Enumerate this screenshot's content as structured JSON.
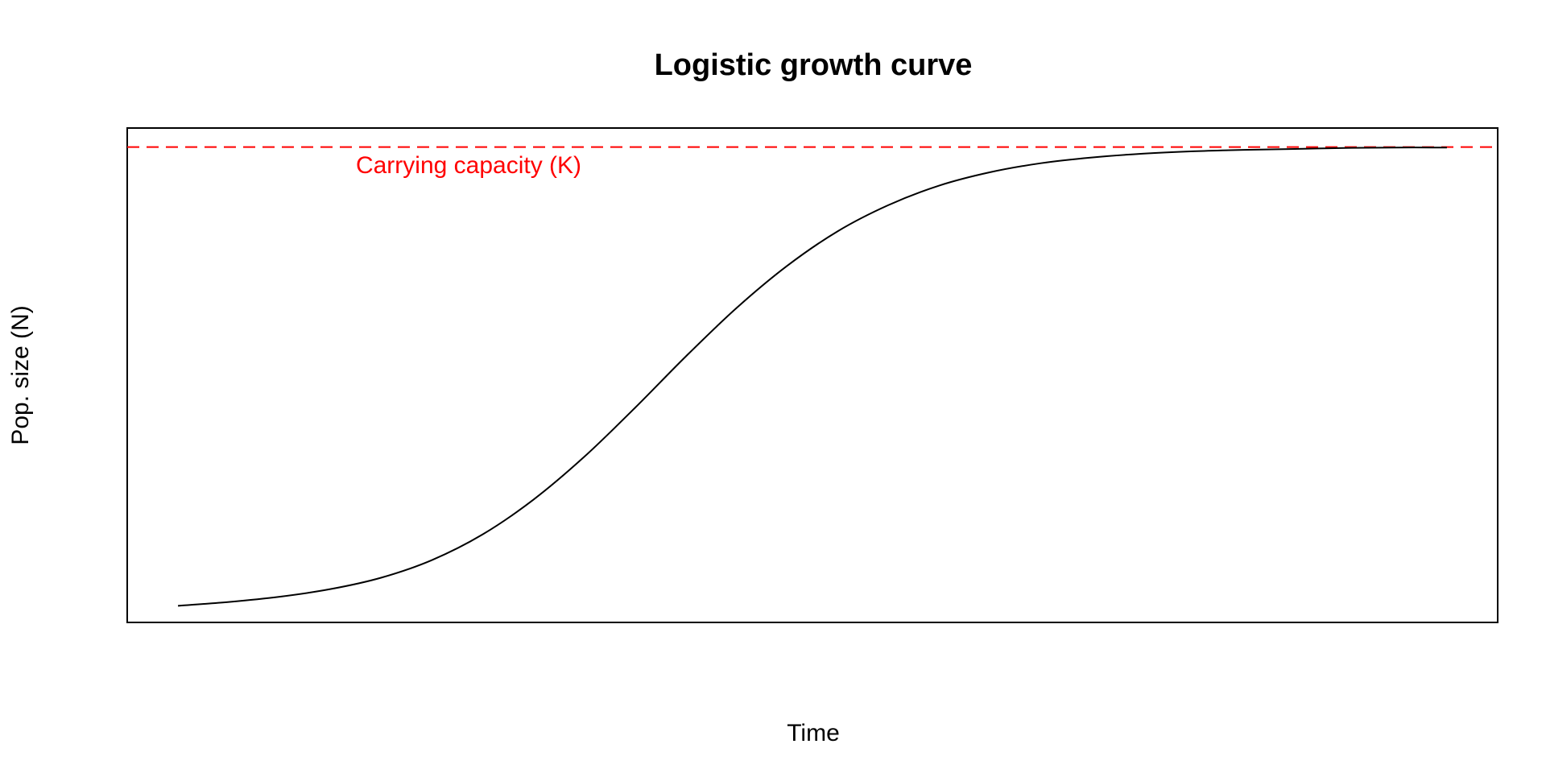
{
  "chart_data": {
    "type": "line",
    "title": "Logistic growth curve",
    "xlabel": "Time",
    "ylabel": "Pop. size (N)",
    "axes_visible": false,
    "ticks_visible": false,
    "grid": false,
    "legend": "none",
    "model": "logistic",
    "series": [
      {
        "color": "#000000",
        "x": [
          0,
          2,
          4,
          6,
          8,
          10,
          12,
          14,
          16,
          18,
          20,
          22,
          24,
          26,
          28,
          30,
          32,
          34,
          36,
          38,
          40,
          42,
          44,
          46,
          48,
          50
        ],
        "y": [
          0.035,
          0.043,
          0.054,
          0.07,
          0.094,
          0.131,
          0.185,
          0.258,
          0.348,
          0.451,
          0.559,
          0.661,
          0.75,
          0.823,
          0.878,
          0.919,
          0.947,
          0.966,
          0.978,
          0.986,
          0.991,
          0.994,
          0.996,
          0.998,
          0.999,
          0.999
        ]
      }
    ],
    "reference_line": {
      "y": 1.0,
      "style": "dashed",
      "color": "#ff0000",
      "label": "Carrying capacity (K)"
    },
    "xlim": [
      -2,
      52
    ],
    "ylim": [
      0.0,
      1.04
    ]
  }
}
